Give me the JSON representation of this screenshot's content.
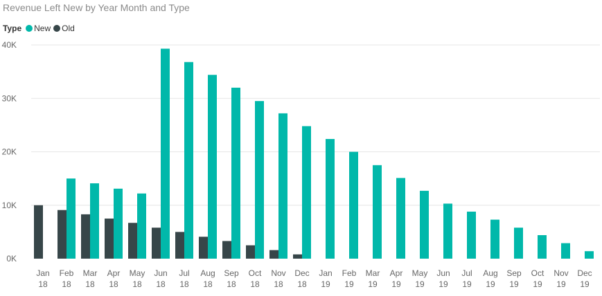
{
  "chart_data": {
    "type": "bar",
    "title": "Revenue Left New by Year Month and Type",
    "legend": {
      "title": "Type",
      "placement": "top-left"
    },
    "categories": [
      [
        "Jan",
        "18"
      ],
      [
        "Feb",
        "18"
      ],
      [
        "Mar",
        "18"
      ],
      [
        "Apr",
        "18"
      ],
      [
        "May",
        "18"
      ],
      [
        "Jun",
        "18"
      ],
      [
        "Jul",
        "18"
      ],
      [
        "Aug",
        "18"
      ],
      [
        "Sep",
        "18"
      ],
      [
        "Oct",
        "18"
      ],
      [
        "Nov",
        "18"
      ],
      [
        "Dec",
        "18"
      ],
      [
        "Jan",
        "19"
      ],
      [
        "Feb",
        "19"
      ],
      [
        "Mar",
        "19"
      ],
      [
        "Apr",
        "19"
      ],
      [
        "May",
        "19"
      ],
      [
        "Jun",
        "19"
      ],
      [
        "Jul",
        "19"
      ],
      [
        "Aug",
        "19"
      ],
      [
        "Sep",
        "19"
      ],
      [
        "Oct",
        "19"
      ],
      [
        "Nov",
        "19"
      ],
      [
        "Dec",
        "19"
      ]
    ],
    "series": [
      {
        "name": "New",
        "color": "#01b8aa",
        "values": [
          null,
          15000,
          14100,
          13100,
          12200,
          39300,
          36800,
          34400,
          32000,
          29500,
          27200,
          24800,
          22400,
          20000,
          17500,
          15100,
          12700,
          10300,
          8800,
          7300,
          5800,
          4400,
          2900,
          1400
        ]
      },
      {
        "name": "Old",
        "color": "#374649",
        "values": [
          10000,
          9100,
          8300,
          7500,
          6700,
          5800,
          5000,
          4100,
          3300,
          2500,
          1600,
          800,
          null,
          null,
          null,
          null,
          null,
          null,
          null,
          null,
          null,
          null,
          null,
          null
        ]
      }
    ],
    "y_ticks": [
      {
        "value": 0,
        "label": "0K"
      },
      {
        "value": 10000,
        "label": "10K"
      },
      {
        "value": 20000,
        "label": "20K"
      },
      {
        "value": 30000,
        "label": "30K"
      },
      {
        "value": 40000,
        "label": "40K"
      }
    ],
    "ylim": [
      0,
      40000
    ],
    "grid": true,
    "grid_color": "#e6e6e6"
  }
}
